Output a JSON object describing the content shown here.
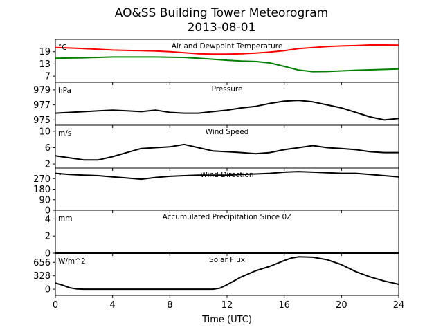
{
  "figure": {
    "title": "AO&SS Building Tower Meteorogram",
    "subtitle": "2013-08-01"
  },
  "chart_data": [
    {
      "type": "line",
      "title": "Air and Dewpoint Temperature",
      "unit_label": "°C",
      "ylim": [
        4,
        25
      ],
      "yticks": [
        7,
        13,
        19
      ],
      "x": [
        0,
        1,
        2,
        3,
        4,
        5,
        6,
        7,
        8,
        9,
        10,
        11,
        12,
        13,
        14,
        15,
        16,
        17,
        18,
        19,
        20,
        21,
        22,
        23,
        24
      ],
      "series": [
        {
          "color": "#ff0000",
          "values": [
            21.0,
            20.8,
            20.5,
            20.2,
            19.8,
            19.6,
            19.5,
            19.3,
            19.0,
            18.5,
            18.0,
            17.8,
            17.8,
            18.0,
            18.3,
            18.8,
            19.5,
            20.5,
            21.0,
            21.5,
            21.8,
            22.0,
            22.3,
            22.3,
            22.2
          ]
        },
        {
          "color": "#008000",
          "values": [
            15.8,
            15.9,
            16.0,
            16.2,
            16.4,
            16.4,
            16.4,
            16.4,
            16.3,
            16.2,
            15.8,
            15.3,
            14.8,
            14.4,
            14.2,
            13.5,
            11.8,
            10.0,
            9.2,
            9.3,
            9.6,
            9.9,
            10.1,
            10.3,
            10.5
          ]
        }
      ]
    },
    {
      "type": "line",
      "title": "Pressure",
      "unit_label": "hPa",
      "ylim": [
        974.3,
        980.0
      ],
      "yticks": [
        975,
        977,
        979
      ],
      "x": [
        0,
        1,
        2,
        3,
        4,
        5,
        6,
        7,
        8,
        9,
        10,
        11,
        12,
        13,
        14,
        15,
        16,
        17,
        18,
        19,
        20,
        21,
        22,
        23,
        24
      ],
      "series": [
        {
          "color": "#000000",
          "values": [
            975.9,
            976.0,
            976.1,
            976.2,
            976.3,
            976.2,
            976.1,
            976.3,
            976.0,
            975.9,
            975.9,
            976.1,
            976.3,
            976.6,
            976.8,
            977.2,
            977.5,
            977.6,
            977.4,
            977.0,
            976.6,
            976.0,
            975.4,
            975.0,
            975.2
          ]
        }
      ]
    },
    {
      "type": "line",
      "title": "Wind Speed",
      "unit_label": "m/s",
      "ylim": [
        1,
        11.5
      ],
      "yticks": [
        2,
        6,
        10
      ],
      "x": [
        0,
        1,
        2,
        3,
        4,
        5,
        6,
        7,
        8,
        9,
        10,
        11,
        12,
        13,
        14,
        15,
        16,
        17,
        18,
        19,
        20,
        21,
        22,
        23,
        24
      ],
      "series": [
        {
          "color": "#000000",
          "values": [
            4.0,
            3.5,
            3.0,
            3.0,
            3.8,
            4.8,
            5.8,
            6.0,
            6.2,
            6.8,
            6.0,
            5.2,
            5.0,
            4.8,
            4.5,
            4.8,
            5.5,
            6.0,
            6.5,
            6.0,
            5.8,
            5.5,
            5.0,
            4.8,
            4.8
          ]
        }
      ]
    },
    {
      "type": "line",
      "title": "Wind Direction",
      "unit_label": "°",
      "ylim": [
        0,
        360
      ],
      "yticks": [
        0,
        90,
        180,
        270
      ],
      "x": [
        0,
        1,
        2,
        3,
        4,
        5,
        6,
        7,
        8,
        9,
        10,
        11,
        12,
        13,
        14,
        15,
        16,
        17,
        18,
        19,
        20,
        21,
        22,
        23,
        24
      ],
      "series": [
        {
          "color": "#000000",
          "values": [
            315,
            305,
            300,
            295,
            285,
            275,
            265,
            280,
            290,
            295,
            300,
            300,
            300,
            305,
            310,
            315,
            325,
            330,
            325,
            320,
            315,
            315,
            305,
            295,
            285
          ]
        }
      ]
    },
    {
      "type": "line",
      "title": "Accumulated Precipitation Since 0Z",
      "unit_label": "mm",
      "ylim": [
        0,
        5
      ],
      "yticks": [
        0,
        2,
        4
      ],
      "x": [
        0,
        24
      ],
      "series": [
        {
          "color": "#000000",
          "values": [
            0,
            0
          ]
        }
      ]
    },
    {
      "type": "line",
      "title": "Solar Flux",
      "unit_label": "W/m^2",
      "ylim": [
        -150,
        880
      ],
      "yticks": [
        0,
        328,
        656
      ],
      "x": [
        0,
        0.5,
        1,
        1.5,
        2,
        11,
        11.5,
        12,
        13,
        14,
        15,
        16,
        16.5,
        17,
        18,
        19,
        20,
        21,
        22,
        23,
        24
      ],
      "series": [
        {
          "color": "#000000",
          "values": [
            150,
            100,
            35,
            5,
            0,
            0,
            25,
            110,
            300,
            450,
            560,
            700,
            760,
            790,
            780,
            720,
            600,
            430,
            300,
            200,
            120
          ]
        }
      ]
    }
  ],
  "xaxis": {
    "label": "Time (UTC)",
    "ticks": [
      0,
      4,
      8,
      12,
      16,
      20,
      24
    ],
    "lim": [
      0,
      24
    ]
  }
}
